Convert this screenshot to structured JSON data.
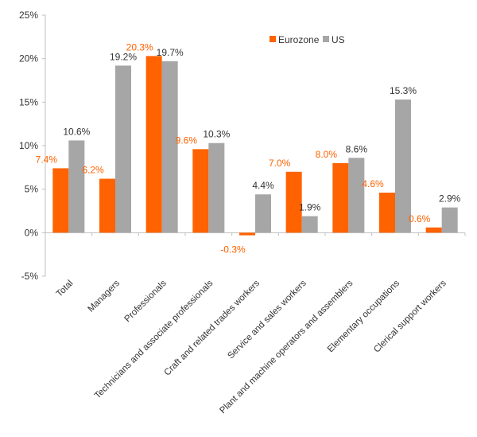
{
  "chart_data": {
    "type": "bar",
    "categories": [
      "Total",
      "Managers",
      "Professionals",
      "Technicians and associate professionals",
      "Craft and related trades workers",
      "Service and sales workers",
      "Plant and machine operators and assemblers",
      "Elementary occupations",
      "Clerical support workers"
    ],
    "series": [
      {
        "name": "Eurozone",
        "color": "#FF6200",
        "values": [
          7.4,
          6.2,
          20.3,
          9.6,
          -0.3,
          7.0,
          8.0,
          4.6,
          0.6
        ],
        "labels": [
          "7.4%",
          "6.2%",
          "20.3%",
          "9.6%",
          "-0.3%",
          "7.0%",
          "8.0%",
          "4.6%",
          "0.6%"
        ]
      },
      {
        "name": "US",
        "color": "#A6A6A6",
        "values": [
          10.6,
          19.2,
          19.7,
          10.3,
          4.4,
          1.9,
          8.6,
          15.3,
          2.9
        ],
        "labels": [
          "10.6%",
          "19.2%",
          "19.7%",
          "10.3%",
          "4.4%",
          "1.9%",
          "8.6%",
          "15.3%",
          "2.9%"
        ]
      }
    ],
    "y_ticks": [
      "25%",
      "20%",
      "15%",
      "10%",
      "5%",
      "0%",
      "-5%"
    ],
    "y_tick_values": [
      25,
      20,
      15,
      10,
      5,
      0,
      -5
    ],
    "ylim": [
      -5,
      25
    ],
    "grid": false,
    "legend_position": "top-right",
    "title": "",
    "xlabel": "",
    "ylabel": ""
  }
}
